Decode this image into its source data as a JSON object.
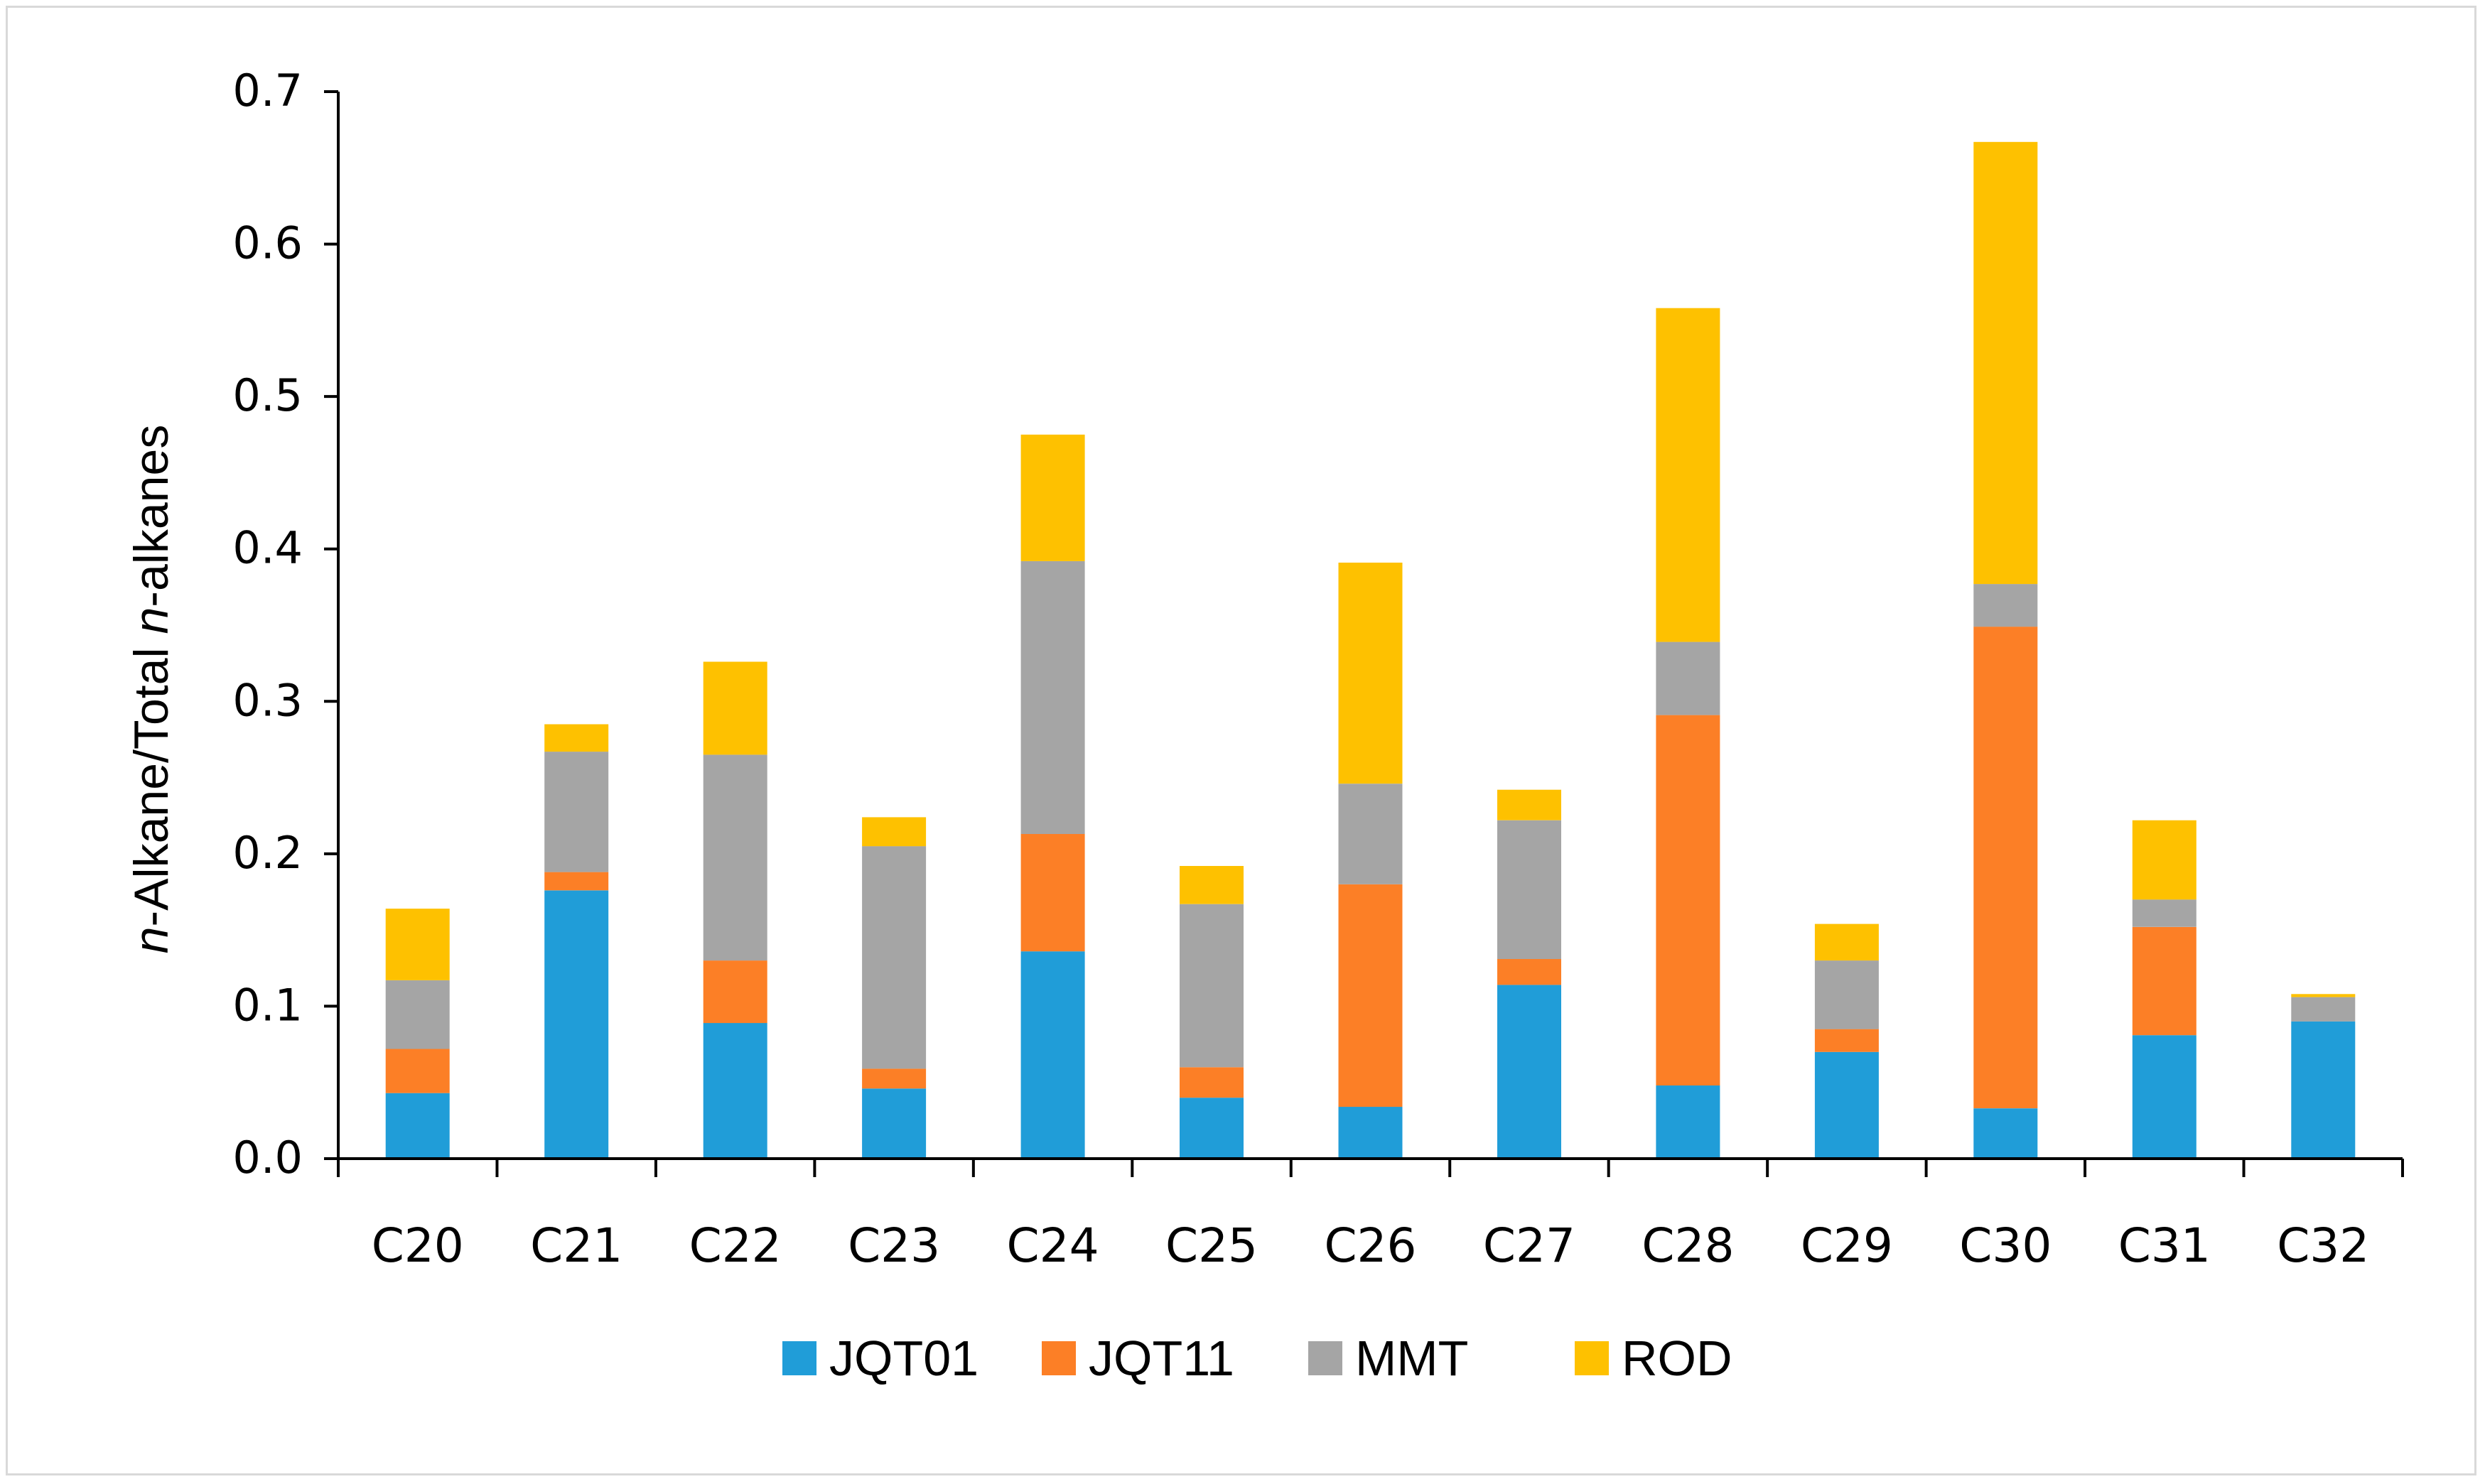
{
  "chart_data": {
    "type": "bar",
    "stacked": true,
    "title": "",
    "xlabel": "",
    "ylabel_parts": [
      {
        "text": "n",
        "italic": true
      },
      {
        "text": "-Alkane/Total ",
        "italic": false
      },
      {
        "text": "n",
        "italic": true
      },
      {
        "text": "-alkanes",
        "italic": false
      }
    ],
    "ylim": [
      0,
      0.7
    ],
    "yticks": [
      0.0,
      0.1,
      0.2,
      0.3,
      0.4,
      0.5,
      0.6,
      0.7
    ],
    "ytick_labels": [
      "0.0",
      "0.1",
      "0.2",
      "0.3",
      "0.4",
      "0.5",
      "0.6",
      "0.7"
    ],
    "categories": [
      "C20",
      "C21",
      "C22",
      "C23",
      "C24",
      "C25",
      "C26",
      "C27",
      "C28",
      "C29",
      "C30",
      "C31",
      "C32"
    ],
    "series": [
      {
        "name": "JQT01",
        "color": "#209dd8",
        "values": [
          0.043,
          0.176,
          0.089,
          0.046,
          0.136,
          0.04,
          0.034,
          0.114,
          0.048,
          0.07,
          0.033,
          0.081,
          0.09
        ]
      },
      {
        "name": "JQT11",
        "color": "#fc7f26",
        "values": [
          0.029,
          0.012,
          0.041,
          0.013,
          0.077,
          0.02,
          0.146,
          0.017,
          0.243,
          0.015,
          0.316,
          0.071,
          0.0
        ]
      },
      {
        "name": "MMT",
        "color": "#a5a5a5",
        "values": [
          0.045,
          0.079,
          0.135,
          0.146,
          0.179,
          0.107,
          0.066,
          0.091,
          0.048,
          0.045,
          0.028,
          0.018,
          0.016
        ]
      },
      {
        "name": "ROD",
        "color": "#fec100",
        "values": [
          0.047,
          0.018,
          0.061,
          0.019,
          0.083,
          0.025,
          0.145,
          0.02,
          0.219,
          0.024,
          0.29,
          0.052,
          0.002
        ]
      }
    ],
    "grid": false,
    "legend_position": "bottom"
  }
}
